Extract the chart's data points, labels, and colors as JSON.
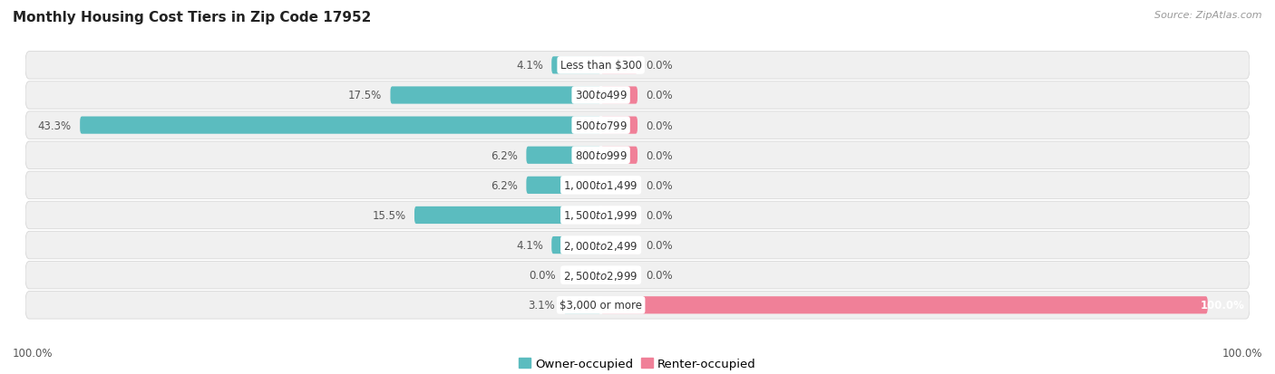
{
  "title": "Monthly Housing Cost Tiers in Zip Code 17952",
  "source": "Source: ZipAtlas.com",
  "categories": [
    "Less than $300",
    "$300 to $499",
    "$500 to $799",
    "$800 to $999",
    "$1,000 to $1,499",
    "$1,500 to $1,999",
    "$2,000 to $2,499",
    "$2,500 to $2,999",
    "$3,000 or more"
  ],
  "owner_values": [
    4.1,
    17.5,
    43.3,
    6.2,
    6.2,
    15.5,
    4.1,
    0.0,
    3.1
  ],
  "renter_values": [
    0.0,
    0.0,
    0.0,
    0.0,
    0.0,
    0.0,
    0.0,
    0.0,
    100.0
  ],
  "owner_color": "#5bbcbf",
  "renter_color": "#f08098",
  "row_bg_color": "#f0f0f0",
  "max_owner": 50.0,
  "max_renter": 100.0,
  "min_bar_width": 3.5,
  "bar_height": 0.58,
  "title_fontsize": 11,
  "label_fontsize": 8.5,
  "legend_fontsize": 9.5,
  "axis_label_fontsize": 8.5
}
